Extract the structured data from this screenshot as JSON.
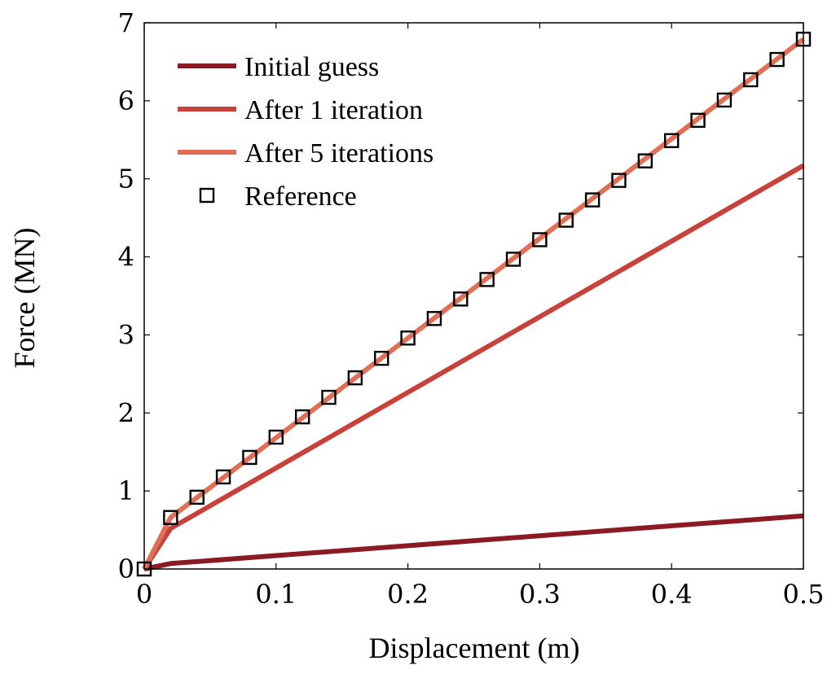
{
  "chart_data": {
    "type": "line",
    "title": "",
    "xlabel": "Displacement (m)",
    "ylabel": "Force (MN)",
    "xlim": [
      0,
      0.5
    ],
    "ylim": [
      0,
      7
    ],
    "xticks": [
      0,
      0.1,
      0.2,
      0.3,
      0.4,
      0.5
    ],
    "xtick_labels": [
      "0",
      "0.1",
      "0.2",
      "0.3",
      "0.4",
      "0.5"
    ],
    "yticks": [
      0,
      1,
      2,
      3,
      4,
      5,
      6,
      7
    ],
    "ytick_labels": [
      "0",
      "1",
      "2",
      "3",
      "4",
      "5",
      "6",
      "7"
    ],
    "grid": false,
    "legend_position": "top-left",
    "series": [
      {
        "name": "Initial guess",
        "style": "line",
        "color": "#8b1a22",
        "x": [
          0,
          0.02,
          0.5
        ],
        "y": [
          0,
          0.07,
          0.68
        ]
      },
      {
        "name": "After 1 iteration",
        "style": "line",
        "color": "#c8413a",
        "x": [
          0,
          0.02,
          0.5
        ],
        "y": [
          0,
          0.52,
          5.17
        ]
      },
      {
        "name": "After 5 iterations",
        "style": "line",
        "color": "#e07055",
        "x": [
          0,
          0.02,
          0.5
        ],
        "y": [
          0,
          0.66,
          6.79
        ]
      },
      {
        "name": "Reference",
        "style": "marker",
        "marker": "square",
        "color": "#000000",
        "x": [
          0,
          0.02,
          0.04,
          0.06,
          0.08,
          0.1,
          0.12,
          0.14,
          0.16,
          0.18,
          0.2,
          0.22,
          0.24,
          0.26,
          0.28,
          0.3,
          0.32,
          0.34,
          0.36,
          0.38,
          0.4,
          0.42,
          0.44,
          0.46,
          0.48,
          0.5
        ],
        "y": [
          0,
          0.66,
          0.92,
          1.18,
          1.43,
          1.69,
          1.95,
          2.2,
          2.45,
          2.7,
          2.96,
          3.21,
          3.46,
          3.71,
          3.97,
          4.22,
          4.47,
          4.73,
          4.98,
          5.23,
          5.49,
          5.75,
          6.01,
          6.27,
          6.53,
          6.79
        ]
      }
    ]
  }
}
